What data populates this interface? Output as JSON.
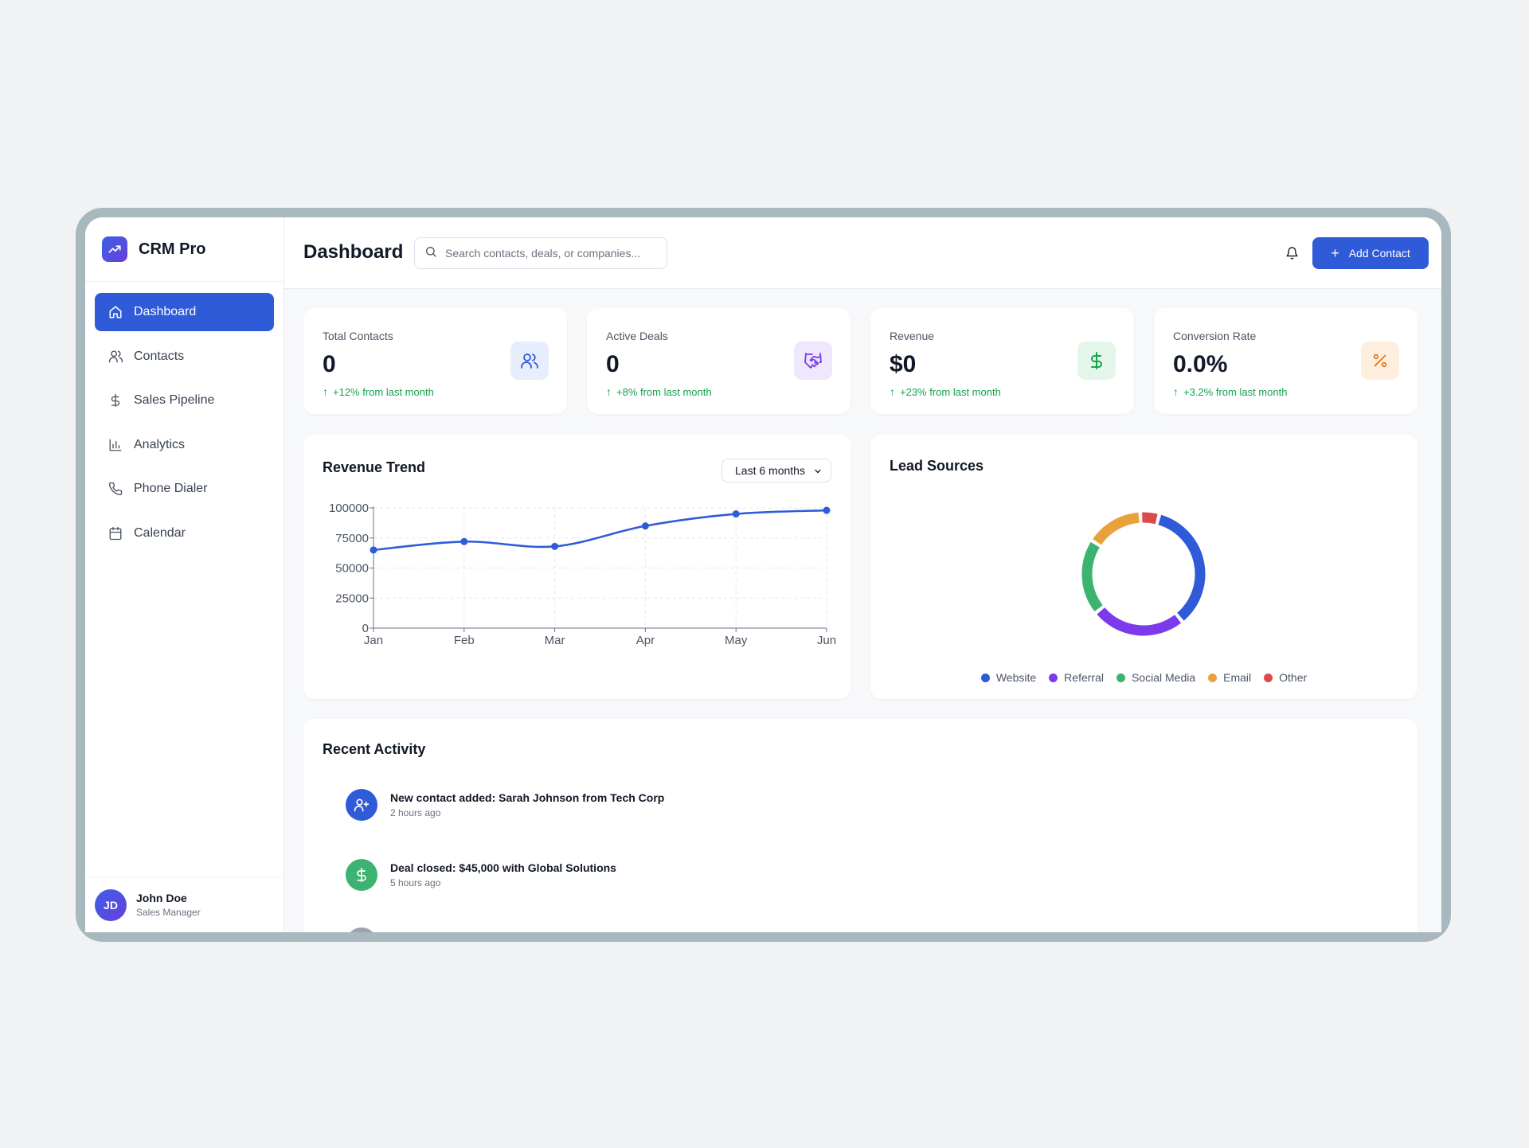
{
  "brand": {
    "name": "CRM Pro"
  },
  "sidebar": {
    "items": [
      {
        "label": "Dashboard",
        "icon": "home-icon",
        "active": true
      },
      {
        "label": "Contacts",
        "icon": "users-icon"
      },
      {
        "label": "Sales Pipeline",
        "icon": "dollar-icon"
      },
      {
        "label": "Analytics",
        "icon": "bar-chart-icon"
      },
      {
        "label": "Phone Dialer",
        "icon": "phone-icon"
      },
      {
        "label": "Calendar",
        "icon": "calendar-icon"
      }
    ],
    "user": {
      "initials": "JD",
      "name": "John Doe",
      "role": "Sales Manager"
    }
  },
  "header": {
    "title": "Dashboard",
    "search_placeholder": "Search contacts, deals, or companies...",
    "add_button": "Add Contact"
  },
  "stats": [
    {
      "label": "Total Contacts",
      "value": "0",
      "change": "+12% from last month",
      "icon": "users-icon",
      "color": "#2f5bd8",
      "bg": "#e6edfb"
    },
    {
      "label": "Active Deals",
      "value": "0",
      "change": "+8% from last month",
      "icon": "handshake-icon",
      "color": "#7c3aed",
      "bg": "#efe7fb"
    },
    {
      "label": "Revenue",
      "value": "$0",
      "change": "+23% from last month",
      "icon": "dollar-icon",
      "color": "#16a34a",
      "bg": "#e4f6e9"
    },
    {
      "label": "Conversion Rate",
      "value": "0.0%",
      "change": "+3.2% from last month",
      "icon": "percent-icon",
      "color": "#ea7a1a",
      "bg": "#fdeede"
    }
  ],
  "revenue_trend": {
    "title": "Revenue Trend",
    "range": "Last 6 months"
  },
  "lead_sources": {
    "title": "Lead Sources"
  },
  "recent_activity": {
    "title": "Recent Activity",
    "items": [
      {
        "title": "New contact added: Sarah Johnson from Tech Corp",
        "time": "2 hours ago",
        "icon": "user-plus-icon",
        "color": "#2f5bd8"
      },
      {
        "title": "Deal closed: $45,000 with Global Solutions",
        "time": "5 hours ago",
        "icon": "dollar-icon",
        "color": "#3cb371"
      }
    ]
  },
  "colors": {
    "accent": "#2f5bd8",
    "positive": "#16a34a"
  },
  "chart_data": [
    {
      "type": "line",
      "title": "Revenue Trend",
      "x": [
        "Jan",
        "Feb",
        "Mar",
        "Apr",
        "May",
        "Jun"
      ],
      "series": [
        {
          "values": [
            65000,
            72000,
            68000,
            85000,
            95000,
            98000
          ]
        }
      ],
      "ylim": [
        0,
        100000
      ],
      "yticks": [
        0,
        25000,
        50000,
        75000,
        100000
      ],
      "grid": true
    },
    {
      "type": "pie",
      "title": "Lead Sources",
      "categories": [
        "Website",
        "Referral",
        "Social Media",
        "Email",
        "Other"
      ],
      "values": [
        35,
        25,
        20,
        15,
        5
      ],
      "colors": [
        "#2f5bd8",
        "#7c3aed",
        "#3cb371",
        "#e9a23b",
        "#dc4b4b"
      ],
      "legend": "bottom"
    }
  ]
}
